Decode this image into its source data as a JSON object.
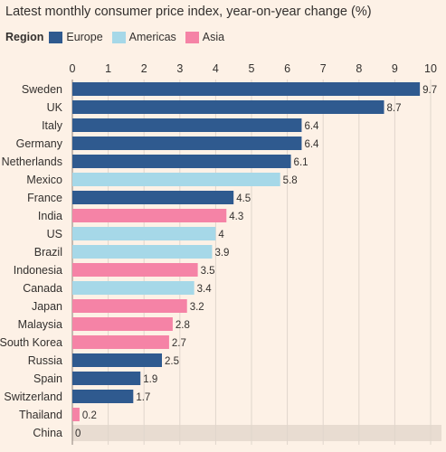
{
  "chart_data": {
    "type": "bar",
    "orientation": "horizontal",
    "title": "Latest monthly consumer price index, year-on-year change (%)",
    "legend_title": "Region",
    "regions": [
      {
        "name": "Europe",
        "color": "#2f5a8f"
      },
      {
        "name": "Americas",
        "color": "#a6d8e8"
      },
      {
        "name": "Asia",
        "color": "#f583a6"
      }
    ],
    "categories": [
      "Sweden",
      "UK",
      "Italy",
      "Germany",
      "Netherlands",
      "Mexico",
      "France",
      "India",
      "US",
      "Brazil",
      "Indonesia",
      "Canada",
      "Japan",
      "Malaysia",
      "South Korea",
      "Russia",
      "Spain",
      "Switzerland",
      "Thailand",
      "China"
    ],
    "values": [
      9.7,
      8.7,
      6.4,
      6.4,
      6.1,
      5.8,
      4.5,
      4.3,
      4,
      3.9,
      3.5,
      3.4,
      3.2,
      2.8,
      2.7,
      2.5,
      1.9,
      1.7,
      0.2,
      0
    ],
    "value_labels": [
      "9.7",
      "8.7",
      "6.4",
      "6.4",
      "6.1",
      "5.8",
      "4.5",
      "4.3",
      "4",
      "3.9",
      "3.5",
      "3.4",
      "3.2",
      "2.8",
      "2.7",
      "2.5",
      "1.9",
      "1.7",
      "0.2",
      "0"
    ],
    "category_region": [
      "Europe",
      "Europe",
      "Europe",
      "Europe",
      "Europe",
      "Americas",
      "Europe",
      "Asia",
      "Americas",
      "Americas",
      "Asia",
      "Americas",
      "Asia",
      "Asia",
      "Asia",
      "Europe",
      "Europe",
      "Europe",
      "Asia",
      "Asia"
    ],
    "x_ticks": [
      0,
      1,
      2,
      3,
      4,
      5,
      6,
      7,
      8,
      9,
      10
    ],
    "xlim": [
      0,
      10
    ],
    "grid": true,
    "legend_position": "top-left",
    "highlight_category": "China",
    "highlight_color": "#e8dcd1"
  }
}
